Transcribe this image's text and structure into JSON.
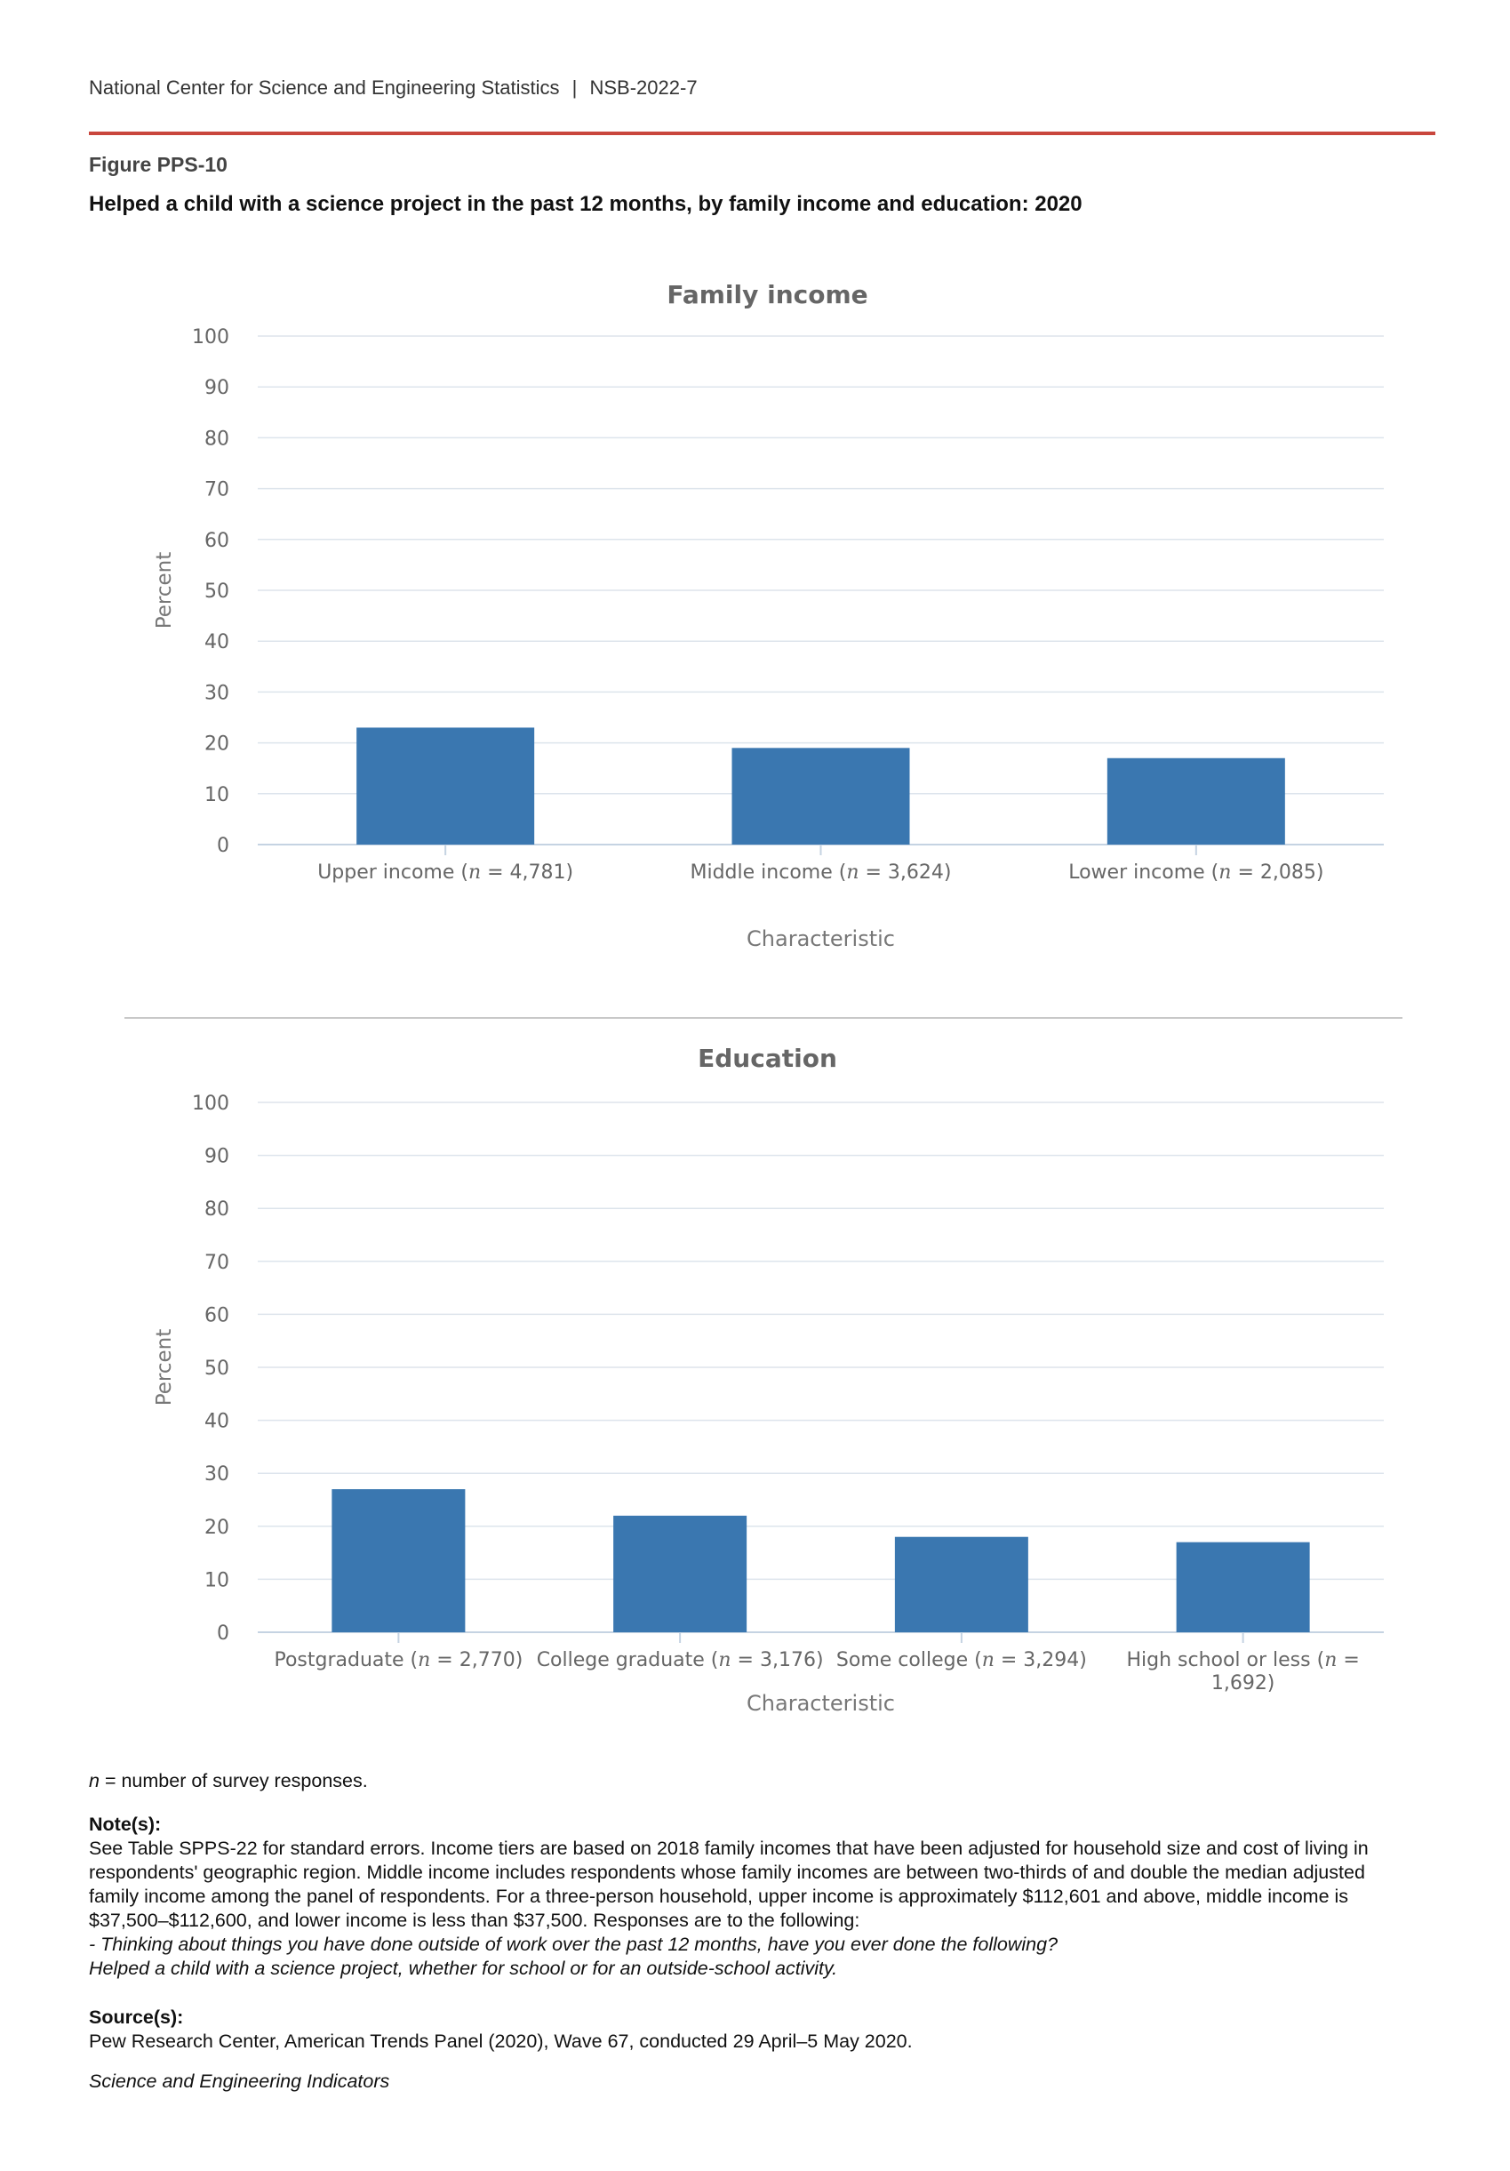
{
  "header": {
    "agency": "National Center for Science and Engineering Statistics",
    "separator": "|",
    "report": "NSB-2022-7"
  },
  "figure": {
    "number": "Figure PPS-10",
    "title": "Helped a child with a science project in the past 12 months, by family income and education: 2020"
  },
  "colors": {
    "bar": "#3a77b0",
    "rule": "#c9463d",
    "grid": "#dde4ec",
    "axis": "#c5d3e2"
  },
  "chart_data": [
    {
      "type": "bar",
      "title": "Family income",
      "xlabel": "Characteristic",
      "ylabel": "Percent",
      "ylim": [
        0,
        100
      ],
      "yticks": [
        0,
        10,
        20,
        30,
        40,
        50,
        60,
        70,
        80,
        90,
        100
      ],
      "grid": true,
      "categories": [
        {
          "pre": "Upper income (",
          "n": "n",
          "post": " = 4,781)"
        },
        {
          "pre": "Middle income (",
          "n": "n",
          "post": " = 3,624)"
        },
        {
          "pre": "Lower income (",
          "n": "n",
          "post": " = 2,085)"
        }
      ],
      "values": [
        23,
        19,
        17
      ]
    },
    {
      "type": "bar",
      "title": "Education",
      "xlabel": "Characteristic",
      "ylabel": "Percent",
      "ylim": [
        0,
        100
      ],
      "yticks": [
        0,
        10,
        20,
        30,
        40,
        50,
        60,
        70,
        80,
        90,
        100
      ],
      "grid": true,
      "categories": [
        {
          "pre": "Postgraduate (",
          "n": "n",
          "post": " = 2,770)"
        },
        {
          "pre": "College graduate (",
          "n": "n",
          "post": " = 3,176)"
        },
        {
          "pre": "Some college (",
          "n": "n",
          "post": " = 3,294)"
        },
        {
          "pre": "High school or less (",
          "n": "n",
          "post": " =",
          "line2": "1,692)"
        }
      ],
      "values": [
        27,
        22,
        18,
        17
      ]
    }
  ],
  "footer": {
    "n_symbol": "n",
    "n_definition": " = number of survey responses.",
    "notes_label": "Note(s):",
    "notes_text": "See Table SPPS-22 for standard errors. Income tiers are based on 2018 family incomes that have been adjusted for household size and cost of living in respondents' geographic region. Middle income includes respondents whose family incomes are between two-thirds of and double the median adjusted family income among the panel of respondents. For a three-person household, upper income is approximately $112,601 and above, middle income is $37,500–$112,600, and lower income is less than $37,500. Responses are to the following:",
    "question_1": "- Thinking about things you have done outside of work over the past 12 months, have you ever done the following?",
    "question_2": "Helped a child with a science project, whether for school or for an outside-school activity.",
    "sources_label": "Source(s):",
    "sources_text": "Pew Research Center, American Trends Panel (2020), Wave 67, conducted 29 April–5 May 2020.",
    "publication": "Science and Engineering Indicators"
  }
}
